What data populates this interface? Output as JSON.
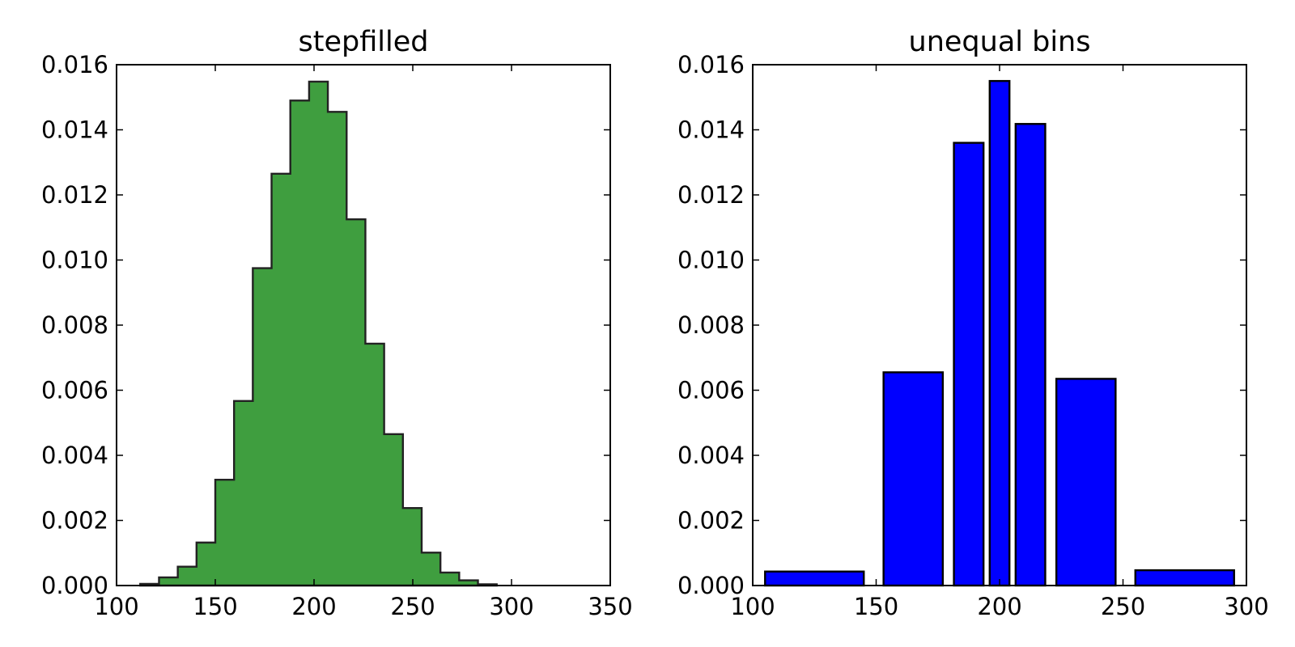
{
  "chart_data": [
    {
      "type": "bar",
      "histtype": "stepfilled",
      "title": "stepfilled",
      "xlabel": "",
      "ylabel": "",
      "xlim": [
        100,
        350
      ],
      "ylim": [
        0,
        0.016
      ],
      "x_ticks": [
        "100",
        "150",
        "200",
        "250",
        "300",
        "350"
      ],
      "y_ticks": [
        "0.000",
        "0.002",
        "0.004",
        "0.006",
        "0.008",
        "0.010",
        "0.012",
        "0.014",
        "0.016"
      ],
      "grid": false,
      "color": "#3f9e3f",
      "edge_color": "#222222",
      "bin_edges": [
        112,
        121.5,
        131,
        140.5,
        150,
        159.5,
        169,
        178.5,
        188,
        197.5,
        207,
        216.5,
        226,
        235.5,
        245,
        254.5,
        264,
        273.5,
        283,
        292.5
      ],
      "values": [
        5e-05,
        0.00025,
        0.00058,
        0.00132,
        0.00325,
        0.00567,
        0.00975,
        0.01265,
        0.0149,
        0.01548,
        0.01455,
        0.01125,
        0.00743,
        0.00465,
        0.00238,
        0.00101,
        0.0004,
        0.00016,
        4e-05
      ]
    },
    {
      "type": "bar",
      "histtype": "bar",
      "title": "unequal bins",
      "xlabel": "",
      "ylabel": "",
      "xlim": [
        100,
        300
      ],
      "ylim": [
        0,
        0.016
      ],
      "x_ticks": [
        "100",
        "150",
        "200",
        "250",
        "300"
      ],
      "y_ticks": [
        "0.000",
        "0.002",
        "0.004",
        "0.006",
        "0.008",
        "0.010",
        "0.012",
        "0.014",
        "0.016"
      ],
      "grid": false,
      "color": "#0000ff",
      "edge_color": "#000000",
      "bin_edges": [
        100,
        150,
        180,
        195,
        205,
        220,
        250,
        300
      ],
      "values": [
        0.00043,
        0.00655,
        0.0136,
        0.0155,
        0.01418,
        0.00635,
        0.00047
      ]
    }
  ]
}
